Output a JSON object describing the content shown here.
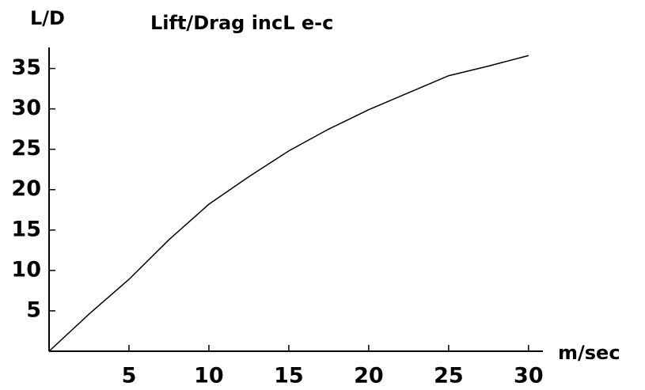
{
  "chart_data": {
    "type": "line",
    "title": "Lift/Drag  incL  e-c",
    "y_label": "L/D",
    "x_label": "m/sec",
    "x": [
      0,
      2.5,
      5,
      7.5,
      10,
      12.5,
      15,
      17.5,
      20,
      22.5,
      25,
      27.5,
      30
    ],
    "series": [
      {
        "name": "L/D",
        "color": "#000000",
        "values": [
          0,
          4.6,
          8.9,
          13.8,
          18.2,
          21.6,
          24.8,
          27.5,
          29.9,
          32.0,
          34.1,
          35.3,
          36.6
        ]
      }
    ],
    "xlim": [
      0,
      30.9
    ],
    "ylim": [
      0,
      37.6
    ],
    "xticks": [
      5,
      10,
      15,
      20,
      25,
      30
    ],
    "yticks": [
      5,
      10,
      15,
      20,
      25,
      30,
      35
    ]
  }
}
